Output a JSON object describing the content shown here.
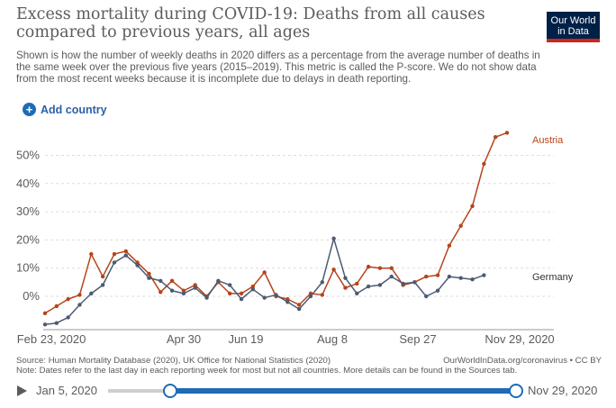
{
  "header": {
    "title": "Excess mortality during COVID-19: Deaths from all causes compared to previous years, all ages",
    "subtitle": "Shown is how the number of weekly deaths in 2020 differs as a percentage from the average number of deaths in the same week over the previous five years (2015–2019). This metric is called the P-score. We do not show data from the most recent weeks because it is incomplete due to delays in death reporting.",
    "logo_line1": "Our World",
    "logo_line2": "in Data"
  },
  "controls": {
    "add_country": "Add country"
  },
  "chart_data": {
    "type": "line",
    "x_tick_labels": [
      "Feb 23, 2020",
      "Apr 30",
      "Jun 19",
      "Aug 8",
      "Sep 27",
      "Nov 29, 2020"
    ],
    "y_tick_labels": [
      "0%",
      "10%",
      "20%",
      "30%",
      "40%",
      "50%"
    ],
    "y_ticks": [
      0,
      10,
      20,
      30,
      40,
      50
    ],
    "ylim": [
      -10,
      58
    ],
    "grid": "horizontal dashed",
    "series": [
      {
        "name": "Austria",
        "color": "#b5441b",
        "values": [
          -6,
          -3.5,
          -1,
          0.5,
          15,
          7,
          15,
          16,
          12,
          8,
          1.5,
          5.5,
          2,
          4,
          0,
          5,
          1,
          1,
          3.5,
          8.5,
          0,
          -1,
          -3,
          1,
          0.5,
          9.5,
          3,
          4.5,
          10.5,
          10,
          10,
          4,
          5,
          7,
          7.5,
          18,
          25,
          32,
          47,
          56.5,
          58
        ]
      },
      {
        "name": "Germany",
        "color": "#4c5b72",
        "values": [
          -10,
          -9.5,
          -7.5,
          -3,
          1,
          4,
          12,
          14.5,
          11,
          6.5,
          5.5,
          2,
          1,
          3,
          -0.5,
          5.5,
          4,
          -1,
          2.5,
          -0.5,
          0.5,
          -2,
          -4.5,
          0,
          5,
          20.5,
          6.5,
          1,
          3.5,
          4,
          7,
          4.5,
          5,
          0,
          2,
          7,
          6.5,
          6,
          7.5
        ]
      }
    ]
  },
  "footer": {
    "source": "Source: Human Mortality Database (2020), UK Office for National Statistics (2020)",
    "url": "OurWorldInData.org/coronavirus • CC BY",
    "note": "Note: Dates refer to the last day in each reporting week for most but not all countries. More details can be found in the Sources tab."
  },
  "timeline": {
    "start_label": "Jan 5, 2020",
    "end_label": "Nov 29, 2020",
    "selected_start_fraction": 0.15,
    "selected_end_fraction": 1.0
  }
}
